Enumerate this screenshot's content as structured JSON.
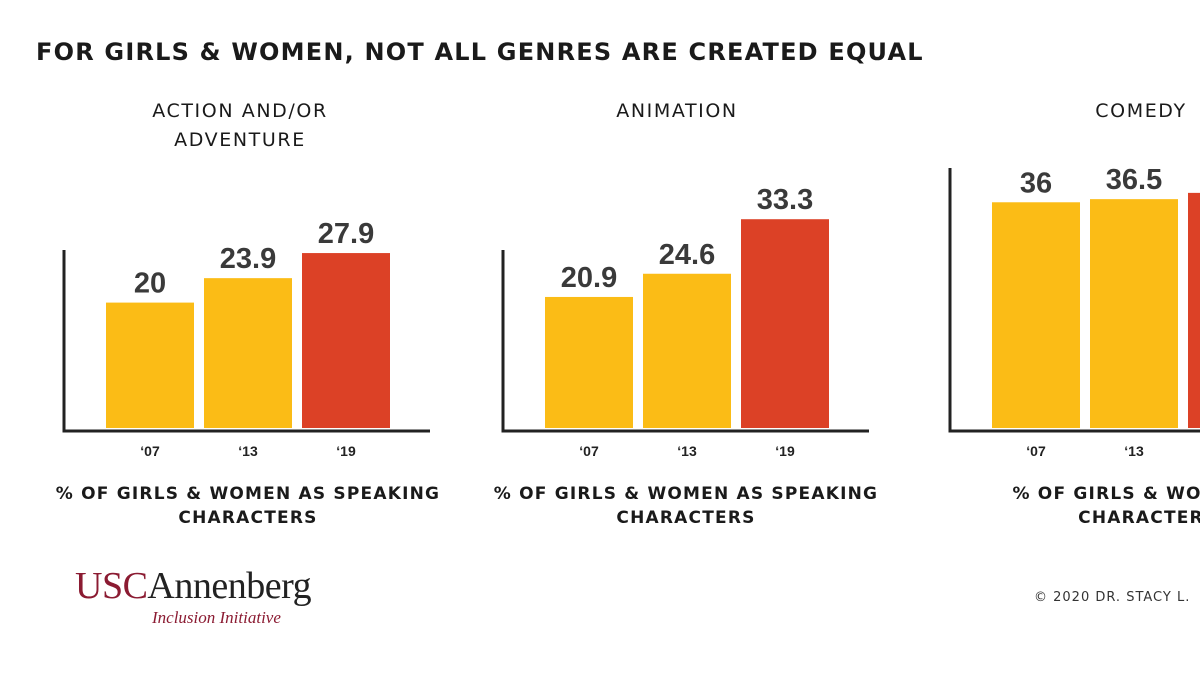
{
  "title": "FOR GIRLS & WOMEN, NOT ALL GENRES ARE CREATED EQUAL",
  "colors": {
    "bar_default": "#fbbc16",
    "bar_highlight": "#dc4126",
    "axis": "#222222"
  },
  "chart_data": [
    {
      "type": "bar",
      "title_lines": [
        "ACTION AND/OR",
        "ADVENTURE"
      ],
      "categories": [
        "‘07",
        "‘13",
        "‘19"
      ],
      "values": [
        20,
        23.9,
        27.9
      ],
      "value_labels": [
        "20",
        "23.9",
        "27.9"
      ],
      "highlight": [
        false,
        false,
        true
      ],
      "caption_lines": [
        "% OF GIRLS & WOMEN AS SPEAKING",
        "CHARACTERS"
      ],
      "ylim": [
        0,
        40
      ],
      "grid": false
    },
    {
      "type": "bar",
      "title_lines": [
        "ANIMATION"
      ],
      "categories": [
        "‘07",
        "‘13",
        "‘19"
      ],
      "values": [
        20.9,
        24.6,
        33.3
      ],
      "value_labels": [
        "20.9",
        "24.6",
        "33.3"
      ],
      "highlight": [
        false,
        false,
        true
      ],
      "caption_lines": [
        "% OF GIRLS & WOMEN AS SPEAKING",
        "CHARACTERS"
      ],
      "ylim": [
        0,
        40
      ],
      "grid": false
    },
    {
      "type": "bar",
      "title_lines": [
        "COMEDY"
      ],
      "categories": [
        "‘07",
        "‘13",
        ""
      ],
      "values": [
        36,
        36.5,
        37.5
      ],
      "value_labels": [
        "36",
        "36.5",
        ""
      ],
      "highlight": [
        false,
        false,
        true
      ],
      "caption_lines": [
        "% OF GIRLS & WOMEN A",
        "CHARACTER"
      ],
      "ylim": [
        0,
        40
      ],
      "grid": false
    }
  ],
  "logo": {
    "usc": "USC",
    "annenberg": "Annenberg",
    "subtitle": "Inclusion Initiative"
  },
  "copyright": "© 2020 DR. STACY L."
}
